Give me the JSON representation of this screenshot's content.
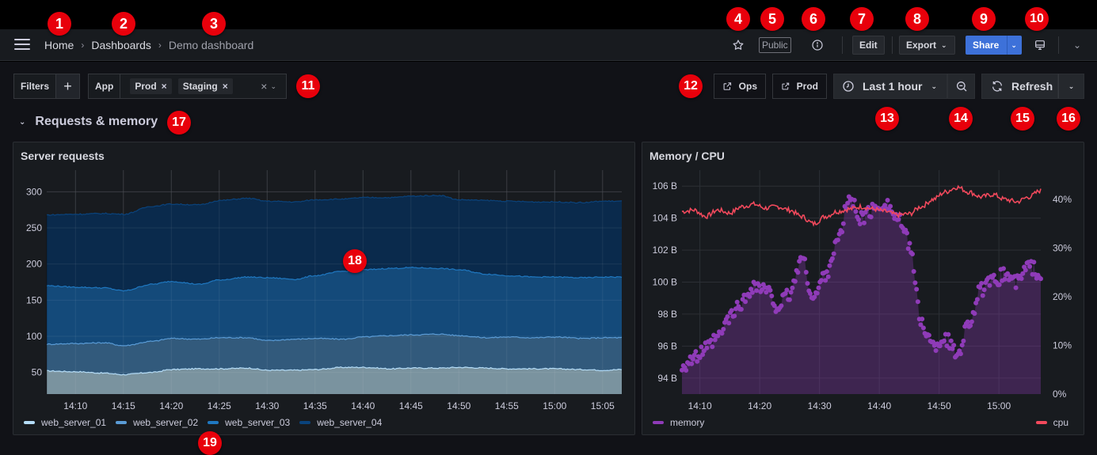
{
  "navbar": {
    "breadcrumb": [
      {
        "label": "Home"
      },
      {
        "label": "Dashboards"
      },
      {
        "label": "Demo dashboard"
      }
    ],
    "breadcrumb_separator": "›",
    "public_label": "Public",
    "edit_label": "Edit",
    "export_label": "Export",
    "share_label": "Share",
    "icons": {
      "menu": "hamburger-icon",
      "star": "star-icon",
      "info": "info-icon",
      "kiosk": "monitor-icon",
      "collapse": "chevron-down-icon"
    }
  },
  "controls": {
    "filters_label": "Filters",
    "add_filter_label": "+",
    "variable": {
      "label": "App",
      "values": [
        "Prod",
        "Staging"
      ],
      "clear_glyph": "×"
    },
    "links": [
      {
        "label": "Ops",
        "icon": "external-link-icon"
      },
      {
        "label": "Prod",
        "icon": "external-link-icon"
      }
    ],
    "time_range": {
      "label": "Last 1 hour",
      "icon": "clock-icon"
    },
    "zoom_out_icon": "zoom-out-icon",
    "refresh_label": "Refresh",
    "refresh_icon": "refresh-icon"
  },
  "row": {
    "title": "Requests & memory",
    "collapsed": false
  },
  "colors": {
    "accent_blue": "#3d71d9",
    "web_server_01": "#b4dcf7",
    "web_server_02": "#5a9bd5",
    "web_server_03": "#1f78c1",
    "web_server_04": "#0a437c",
    "memory": "#8f3bb8",
    "cpu": "#f2495c",
    "badge": "#e8000b"
  },
  "annotations": [
    "1",
    "2",
    "3",
    "4",
    "5",
    "6",
    "7",
    "8",
    "9",
    "10",
    "11",
    "12",
    "13",
    "14",
    "15",
    "16",
    "17",
    "18",
    "19"
  ],
  "chart_data": [
    {
      "type": "area",
      "title": "Server requests",
      "stacked": true,
      "xlabel": "",
      "ylabel": "",
      "ylim": [
        20,
        330
      ],
      "yticks": [
        50,
        100,
        150,
        200,
        250,
        300
      ],
      "xticks": [
        "14:10",
        "14:15",
        "14:20",
        "14:25",
        "14:30",
        "14:35",
        "14:40",
        "14:45",
        "14:50",
        "14:55",
        "15:00",
        "15:05"
      ],
      "x": [
        "14:07",
        "14:10",
        "14:13",
        "14:15",
        "14:18",
        "14:20",
        "14:23",
        "14:25",
        "14:28",
        "14:30",
        "14:33",
        "14:35",
        "14:38",
        "14:40",
        "14:43",
        "14:45",
        "14:48",
        "14:50",
        "14:53",
        "14:55",
        "14:58",
        "15:00",
        "15:03",
        "15:05",
        "15:07"
      ],
      "series": [
        {
          "name": "web_server_01",
          "cumulative_top": [
            52,
            51,
            49,
            47,
            50,
            54,
            55,
            55,
            56,
            53,
            53,
            54,
            57,
            57,
            55,
            56,
            56,
            57,
            56,
            55,
            55,
            55,
            54,
            53,
            54
          ]
        },
        {
          "name": "web_server_02",
          "cumulative_top": [
            89,
            90,
            91,
            87,
            93,
            97,
            96,
            98,
            98,
            94,
            96,
            97,
            96,
            99,
            101,
            102,
            103,
            101,
            98,
            99,
            98,
            99,
            97,
            98,
            98
          ]
        },
        {
          "name": "web_server_03",
          "cumulative_top": [
            170,
            168,
            167,
            163,
            172,
            176,
            172,
            178,
            182,
            181,
            179,
            184,
            190,
            192,
            194,
            195,
            194,
            192,
            186,
            184,
            182,
            182,
            181,
            182,
            182
          ]
        },
        {
          "name": "web_server_04",
          "cumulative_top": [
            268,
            269,
            270,
            269,
            280,
            283,
            282,
            288,
            291,
            287,
            286,
            289,
            290,
            292,
            292,
            294,
            295,
            289,
            288,
            287,
            286,
            286,
            285,
            287,
            287
          ]
        }
      ],
      "legend": [
        "web_server_01",
        "web_server_02",
        "web_server_03",
        "web_server_04"
      ],
      "legend_position": "bottom-left",
      "grid": true
    },
    {
      "type": "line",
      "title": "Memory / CPU",
      "xticks": [
        "14:10",
        "14:20",
        "14:30",
        "14:40",
        "14:50",
        "15:00"
      ],
      "left_axis": {
        "ticks": [
          "94 B",
          "96 B",
          "98 B",
          "100 B",
          "102 B",
          "104 B",
          "106 B"
        ],
        "range": [
          93,
          107
        ]
      },
      "right_axis": {
        "ticks": [
          "0%",
          "10%",
          "20%",
          "30%",
          "40%"
        ],
        "range": [
          0,
          46
        ]
      },
      "x": [
        "14:07",
        "14:09",
        "14:11",
        "14:13",
        "14:15",
        "14:17",
        "14:19",
        "14:21",
        "14:23",
        "14:25",
        "14:27",
        "14:29",
        "14:31",
        "14:33",
        "14:35",
        "14:37",
        "14:39",
        "14:41",
        "14:43",
        "14:45",
        "14:47",
        "14:49",
        "14:51",
        "14:53",
        "14:55",
        "14:57",
        "14:59",
        "15:01",
        "15:03",
        "15:05",
        "15:07"
      ],
      "series": [
        {
          "name": "memory",
          "axis": "left",
          "unit": "B",
          "style": "points+area",
          "values": [
            94.8,
            95.2,
            95.8,
            96.5,
            97.8,
            98.7,
            99.8,
            99.5,
            98.5,
            99.2,
            101.5,
            99.0,
            100.5,
            102.5,
            105.2,
            104.0,
            104.5,
            105.0,
            104.0,
            102.5,
            97.5,
            96.0,
            96.5,
            95.5,
            97.5,
            99.5,
            100.0,
            100.5,
            100.0,
            101.0,
            100.5
          ]
        },
        {
          "name": "cpu",
          "axis": "right",
          "unit": "%",
          "style": "line",
          "values": [
            37.5,
            37.8,
            36.5,
            37.8,
            37.2,
            38.5,
            39.0,
            38.2,
            38.5,
            37.8,
            36.5,
            35.0,
            36.5,
            37.5,
            38.0,
            38.5,
            38.0,
            37.5,
            36.8,
            37.0,
            38.5,
            40.0,
            41.5,
            42.5,
            41.5,
            40.5,
            41.0,
            40.0,
            39.5,
            40.5,
            41.8
          ]
        }
      ],
      "legend": [
        {
          "name": "memory",
          "position": "bottom-left"
        },
        {
          "name": "cpu",
          "position": "bottom-right"
        }
      ],
      "grid": true
    }
  ]
}
